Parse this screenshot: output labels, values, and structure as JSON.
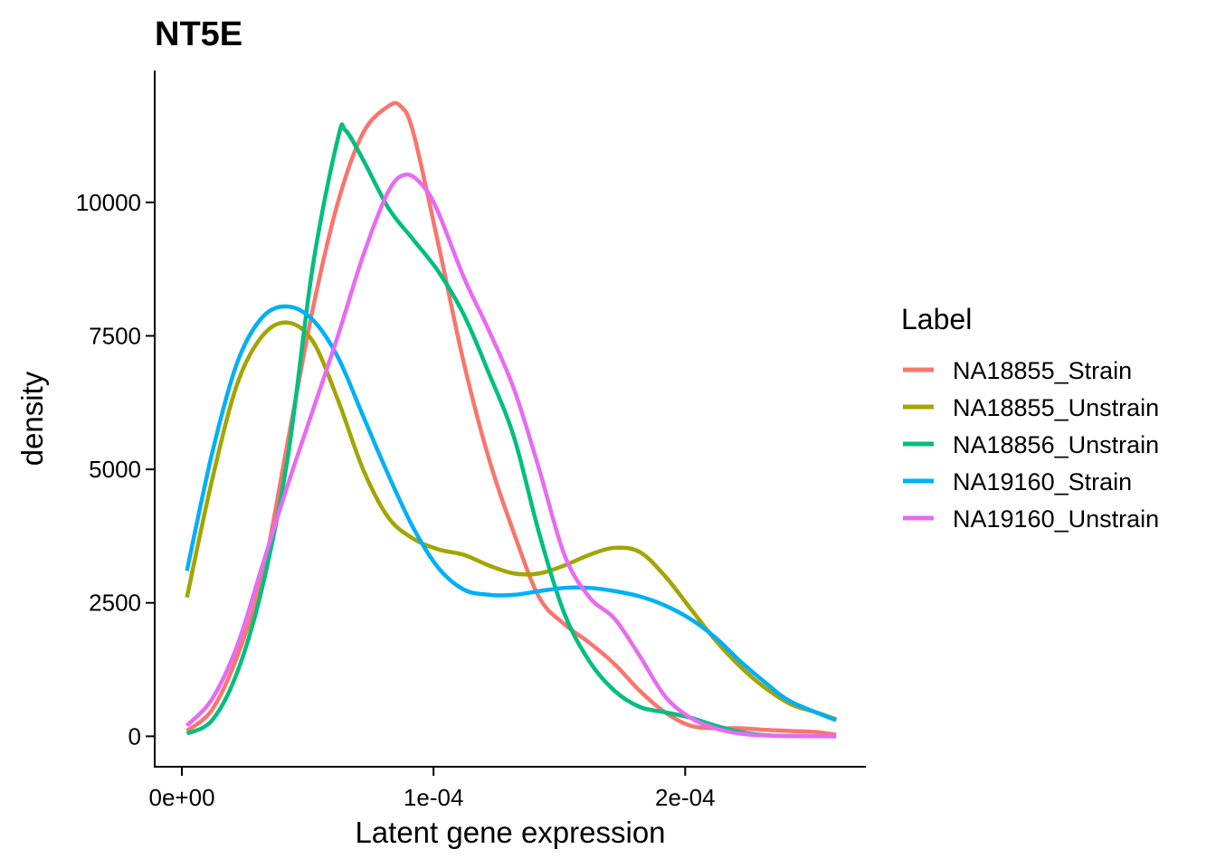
{
  "chart_data": {
    "type": "line",
    "title": "NT5E",
    "xlabel": "Latent gene expression",
    "ylabel": "density",
    "xlim": [
      -1.08e-05,
      0.0002718
    ],
    "ylim": [
      -570,
      12470
    ],
    "x_ticks": [
      {
        "value": 0,
        "label": "0e+00"
      },
      {
        "value": 0.0001,
        "label": "1e-04"
      },
      {
        "value": 0.0002,
        "label": "2e-04"
      }
    ],
    "y_ticks": [
      {
        "value": 0,
        "label": "0"
      },
      {
        "value": 2500,
        "label": "2500"
      },
      {
        "value": 5000,
        "label": "5000"
      },
      {
        "value": 7500,
        "label": "7500"
      },
      {
        "value": 10000,
        "label": "10000"
      }
    ],
    "grid": false,
    "legend": {
      "title": "Label",
      "position": "right"
    },
    "series": [
      {
        "name": "NA18855_Strain",
        "color": "#F8766D",
        "points": [
          [
            2e-06,
            100
          ],
          [
            1.2e-05,
            500
          ],
          [
            2.2e-05,
            1500
          ],
          [
            3.2e-05,
            3000
          ],
          [
            4.2e-05,
            5500
          ],
          [
            5.2e-05,
            8000
          ],
          [
            6.2e-05,
            10000
          ],
          [
            7.2e-05,
            11300
          ],
          [
            8.2e-05,
            11800
          ],
          [
            8.7e-05,
            11800
          ],
          [
            9.2e-05,
            11300
          ],
          [
            0.000102,
            9200
          ],
          [
            0.000112,
            7000
          ],
          [
            0.000122,
            5200
          ],
          [
            0.000132,
            3800
          ],
          [
            0.000142,
            2600
          ],
          [
            0.000152,
            2100
          ],
          [
            0.000162,
            1750
          ],
          [
            0.000172,
            1350
          ],
          [
            0.000182,
            850
          ],
          [
            0.000192,
            450
          ],
          [
            0.000202,
            200
          ],
          [
            0.000212,
            150
          ],
          [
            0.000222,
            150
          ],
          [
            0.000232,
            120
          ],
          [
            0.000242,
            100
          ],
          [
            0.000252,
            80
          ],
          [
            0.00026,
            30
          ]
        ]
      },
      {
        "name": "NA18855_Unstrain",
        "color": "#A3A500",
        "points": [
          [
            2e-06,
            2600
          ],
          [
            1.2e-05,
            4800
          ],
          [
            2.2e-05,
            6600
          ],
          [
            3.2e-05,
            7500
          ],
          [
            4.2e-05,
            7750
          ],
          [
            5.2e-05,
            7400
          ],
          [
            6.2e-05,
            6300
          ],
          [
            7.2e-05,
            5000
          ],
          [
            8.2e-05,
            4100
          ],
          [
            9.2e-05,
            3700
          ],
          [
            0.000102,
            3500
          ],
          [
            0.000112,
            3400
          ],
          [
            0.000122,
            3200
          ],
          [
            0.000132,
            3050
          ],
          [
            0.000142,
            3050
          ],
          [
            0.000152,
            3200
          ],
          [
            0.000162,
            3400
          ],
          [
            0.000172,
            3530
          ],
          [
            0.000182,
            3450
          ],
          [
            0.000192,
            3000
          ],
          [
            0.000202,
            2400
          ],
          [
            0.000212,
            1800
          ],
          [
            0.000222,
            1300
          ],
          [
            0.000232,
            900
          ],
          [
            0.000242,
            600
          ],
          [
            0.000252,
            450
          ],
          [
            0.00026,
            320
          ]
        ]
      },
      {
        "name": "NA18856_Unstrain",
        "color": "#00BF7D",
        "points": [
          [
            2e-06,
            50
          ],
          [
            1.2e-05,
            300
          ],
          [
            2.2e-05,
            1200
          ],
          [
            3.2e-05,
            2800
          ],
          [
            4.2e-05,
            5200
          ],
          [
            5.2e-05,
            8800
          ],
          [
            6.2e-05,
            11200
          ],
          [
            6.5e-05,
            11350
          ],
          [
            7.2e-05,
            10800
          ],
          [
            8.2e-05,
            9900
          ],
          [
            9.2e-05,
            9300
          ],
          [
            0.000102,
            8700
          ],
          [
            0.000112,
            7900
          ],
          [
            0.000122,
            6800
          ],
          [
            0.000132,
            5600
          ],
          [
            0.000142,
            3800
          ],
          [
            0.000152,
            2300
          ],
          [
            0.000162,
            1400
          ],
          [
            0.000172,
            850
          ],
          [
            0.000182,
            550
          ],
          [
            0.000192,
            450
          ],
          [
            0.000202,
            350
          ],
          [
            0.000212,
            200
          ],
          [
            0.000222,
            80
          ],
          [
            0.000232,
            20
          ],
          [
            0.000242,
            5
          ],
          [
            0.00026,
            0
          ]
        ]
      },
      {
        "name": "NA19160_Strain",
        "color": "#00B0F6",
        "points": [
          [
            2e-06,
            3100
          ],
          [
            1.2e-05,
            5300
          ],
          [
            2.2e-05,
            7000
          ],
          [
            3.2e-05,
            7850
          ],
          [
            4.2e-05,
            8050
          ],
          [
            5.2e-05,
            7800
          ],
          [
            6.2e-05,
            7100
          ],
          [
            7.2e-05,
            6000
          ],
          [
            8.2e-05,
            4900
          ],
          [
            9.2e-05,
            3900
          ],
          [
            0.000102,
            3150
          ],
          [
            0.000112,
            2750
          ],
          [
            0.000122,
            2650
          ],
          [
            0.000132,
            2650
          ],
          [
            0.000142,
            2720
          ],
          [
            0.000152,
            2780
          ],
          [
            0.000162,
            2780
          ],
          [
            0.000172,
            2720
          ],
          [
            0.000182,
            2620
          ],
          [
            0.000192,
            2450
          ],
          [
            0.000202,
            2200
          ],
          [
            0.000212,
            1850
          ],
          [
            0.000222,
            1400
          ],
          [
            0.000232,
            1000
          ],
          [
            0.000242,
            650
          ],
          [
            0.00026,
            300
          ]
        ]
      },
      {
        "name": "NA19160_Unstrain",
        "color": "#E76BF3",
        "points": [
          [
            2e-06,
            200
          ],
          [
            1.2e-05,
            700
          ],
          [
            2.2e-05,
            1700
          ],
          [
            3.2e-05,
            3200
          ],
          [
            4.2e-05,
            4700
          ],
          [
            5.2e-05,
            6100
          ],
          [
            6.2e-05,
            7500
          ],
          [
            7.2e-05,
            9000
          ],
          [
            8.2e-05,
            10200
          ],
          [
            8.9e-05,
            10520
          ],
          [
            9.6e-05,
            10300
          ],
          [
            0.000102,
            9800
          ],
          [
            0.000112,
            8600
          ],
          [
            0.000122,
            7600
          ],
          [
            0.000132,
            6500
          ],
          [
            0.000142,
            5000
          ],
          [
            0.000152,
            3400
          ],
          [
            0.000162,
            2600
          ],
          [
            0.000172,
            2200
          ],
          [
            0.000182,
            1500
          ],
          [
            0.000192,
            750
          ],
          [
            0.000202,
            350
          ],
          [
            0.000212,
            150
          ],
          [
            0.000222,
            50
          ],
          [
            0.000232,
            15
          ],
          [
            0.000242,
            5
          ],
          [
            0.00026,
            0
          ]
        ]
      }
    ]
  }
}
